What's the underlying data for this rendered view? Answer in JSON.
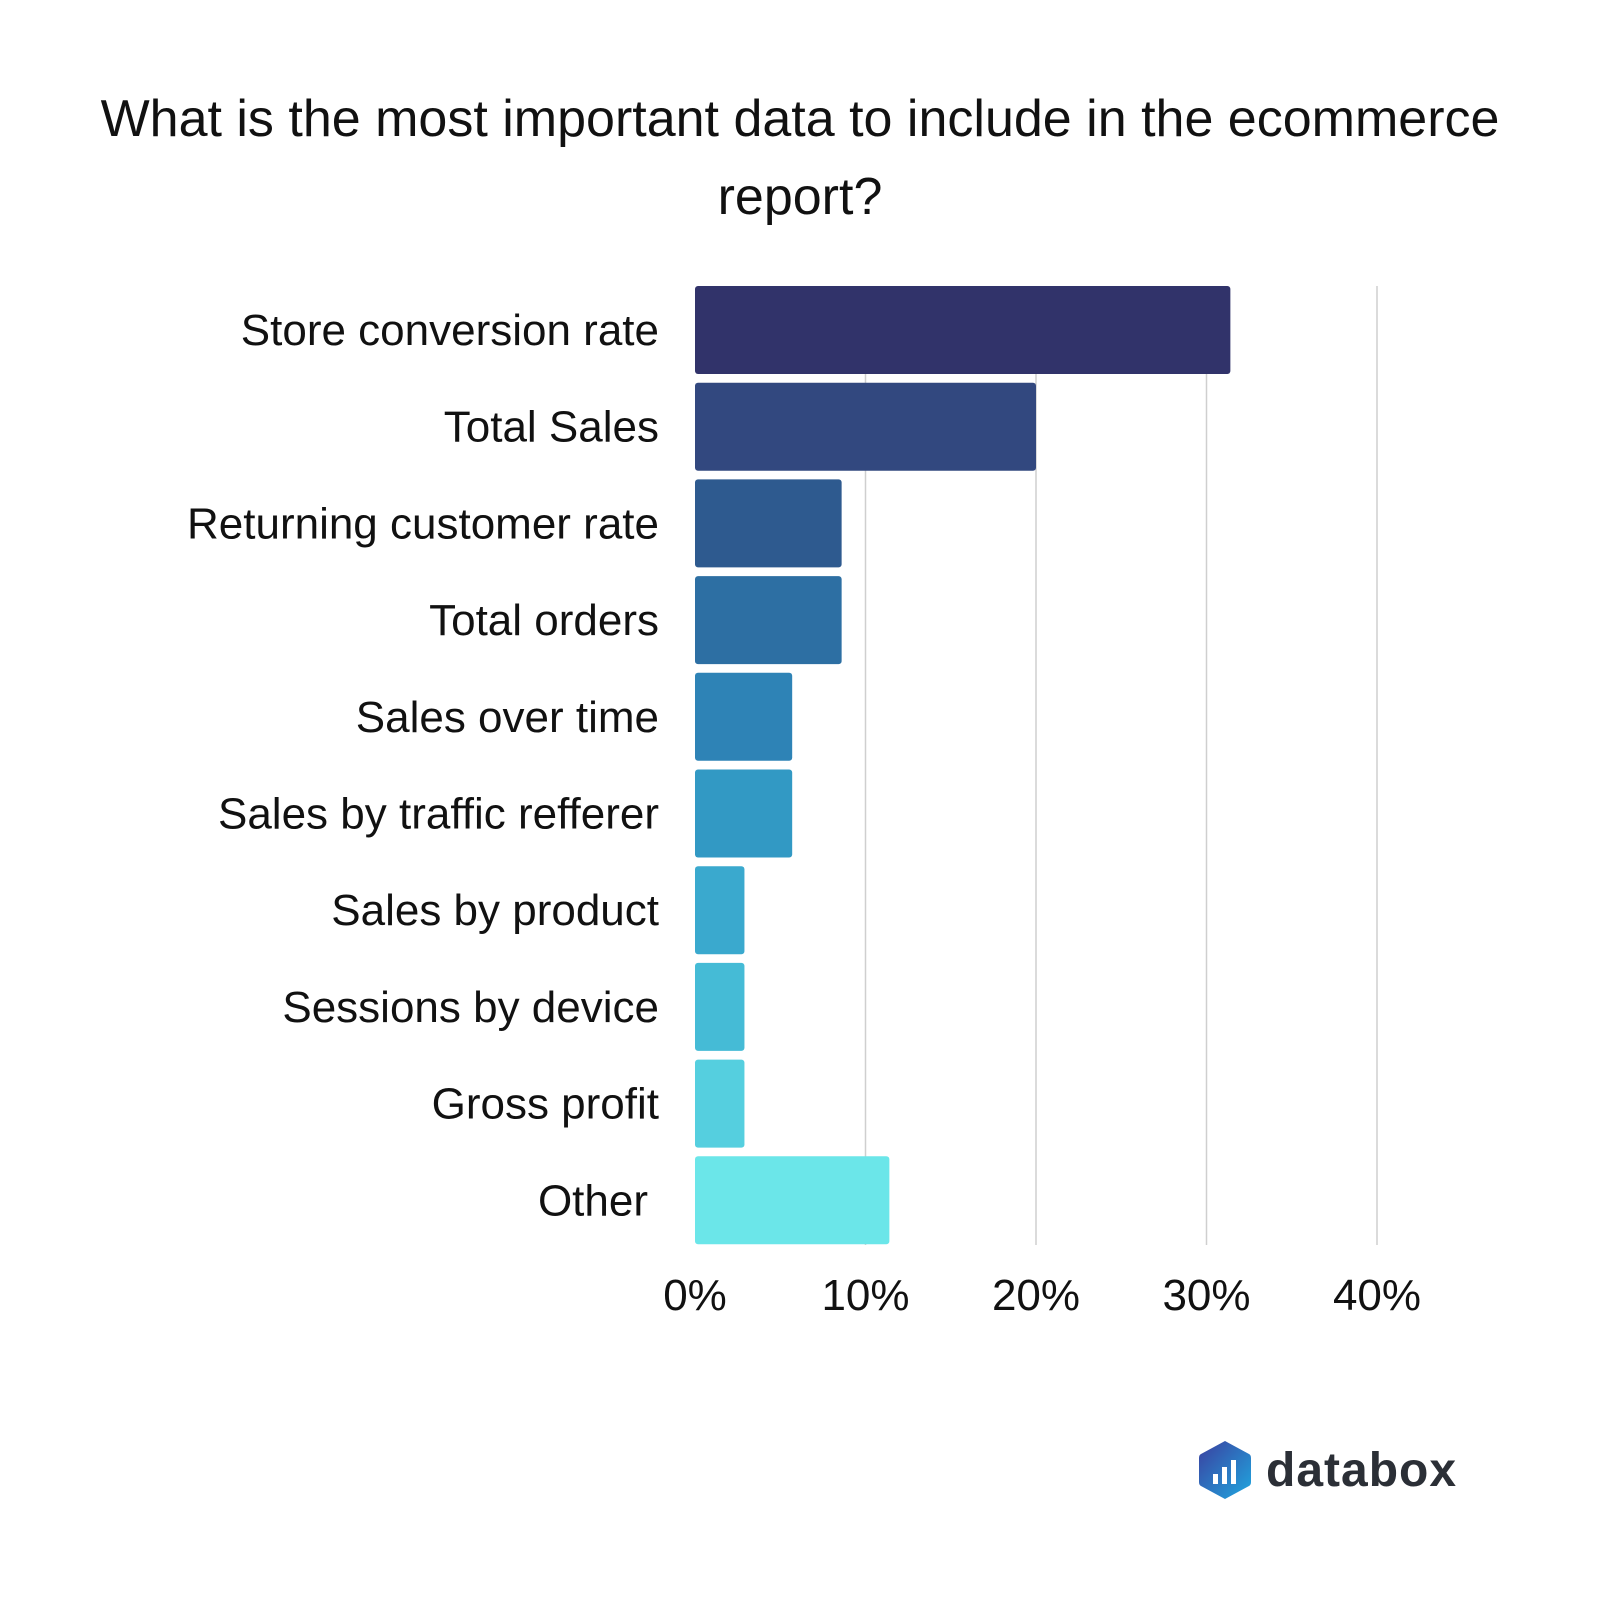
{
  "chart_data": {
    "type": "bar",
    "orientation": "horizontal",
    "title": "What is the most important data to include in the ecommerce report?",
    "categories": [
      "Store conversion rate",
      "Total Sales",
      "Returning customer rate",
      "Total orders",
      "Sales over time",
      "Sales by traffic refferer",
      "Sales by product",
      "Sessions by device",
      "Gross profit",
      "Other"
    ],
    "values": [
      31.4,
      20.0,
      8.6,
      8.6,
      5.7,
      5.7,
      2.9,
      2.9,
      2.9,
      11.4
    ],
    "unit": "%",
    "xlim": [
      0,
      40
    ],
    "xticks": [
      "0%",
      "10%",
      "20%",
      "30%",
      "40%"
    ],
    "xtick_values": [
      0,
      10,
      20,
      30,
      40
    ],
    "grid": true,
    "colors": [
      "#31336a",
      "#32487f",
      "#2e5a8f",
      "#2d6fa3",
      "#2e83b6",
      "#3299c4",
      "#3aa9ce",
      "#45bbd6",
      "#55cfdf",
      "#6be6e9"
    ]
  },
  "logo": {
    "text": "databox",
    "gradient": [
      "#3b3f9f",
      "#1fa8e0"
    ]
  }
}
